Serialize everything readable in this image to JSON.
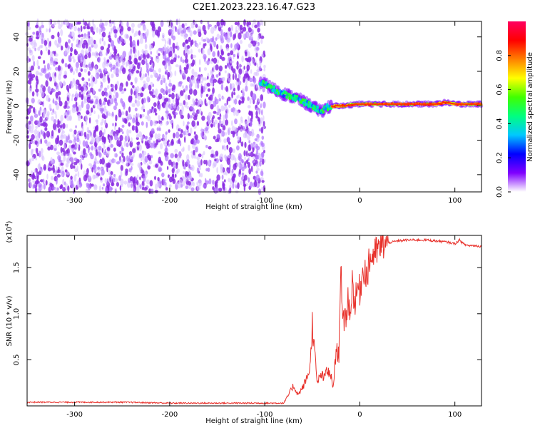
{
  "title": "C2E1.2023.223.16.47.G23",
  "colors": {
    "snr_line": "#e8302a",
    "frame": "#000000"
  },
  "chart_data": [
    {
      "type": "heatmap",
      "xlabel": "Height of straight line (km)",
      "ylabel": "Frequency (Hz)",
      "xlim": [
        -350,
        128
      ],
      "ylim": [
        -50,
        49
      ],
      "xticks": [
        -300,
        -200,
        -100,
        0,
        100
      ],
      "xtick_labels": [
        "-300",
        "-200",
        "-100",
        "0",
        "100"
      ],
      "yticks": [
        -40,
        -20,
        0,
        20,
        40
      ],
      "ytick_labels": [
        "-40",
        "-20",
        "0",
        "20",
        "40"
      ],
      "noise_region_x": [
        -350,
        -100
      ],
      "signal_track": {
        "x": [
          -105,
          -95,
          -85,
          -75,
          -65,
          -55,
          -45,
          -40,
          -35,
          -25,
          -15,
          -5,
          5,
          20,
          40,
          60,
          80,
          90,
          100,
          110,
          128
        ],
        "freq": [
          14,
          11,
          8,
          6,
          4,
          1,
          -2,
          -3,
          -1,
          0,
          0,
          1,
          1,
          1,
          1,
          1,
          1,
          2,
          1,
          1,
          1
        ]
      },
      "colorbar": {
        "label": "Normalized spectral amplitude",
        "ticks": [
          0.0,
          0.2,
          0.4,
          0.6,
          0.8
        ],
        "tick_labels": [
          "0.0",
          "0.2",
          "0.4",
          "0.6",
          "0.8"
        ],
        "range": [
          0,
          1
        ],
        "colormap": [
          "#ffffff",
          "#7f00ff",
          "#0000ff",
          "#00c8ff",
          "#00ff80",
          "#40ff00",
          "#ffff00",
          "#ff8000",
          "#ff0000",
          "#ff0060"
        ]
      }
    },
    {
      "type": "line",
      "xlabel": "Height of straight line (km)",
      "ylabel": "SNR (10 * v/v)",
      "y_multiplier": "(x10",
      "y_multiplier_exp": "4",
      "y_multiplier_close": ")",
      "xlim": [
        -350,
        128
      ],
      "ylim": [
        0,
        1.85
      ],
      "xticks": [
        -300,
        -200,
        -100,
        0,
        100
      ],
      "xtick_labels": [
        "-300",
        "-200",
        "-100",
        "0",
        "100"
      ],
      "yticks": [
        0.5,
        1.0,
        1.5
      ],
      "ytick_labels": [
        "0.5",
        "1.0",
        "1.5"
      ],
      "series": [
        {
          "x": [
            -350,
            -300,
            -250,
            -200,
            -150,
            -100,
            -80,
            -75,
            -70,
            -65,
            -60,
            -55,
            -52,
            -50,
            -45,
            -40,
            -38,
            -35,
            -30,
            -28,
            -25,
            -22,
            -20,
            -18,
            -15,
            -12,
            -10,
            -8,
            -5,
            -2,
            0,
            3,
            5,
            8,
            10,
            15,
            20,
            25,
            30,
            40,
            50,
            60,
            70,
            80,
            90,
            100,
            105,
            110,
            115,
            120,
            128
          ],
          "y": [
            0.04,
            0.04,
            0.04,
            0.03,
            0.03,
            0.03,
            0.03,
            0.12,
            0.22,
            0.12,
            0.2,
            0.32,
            0.45,
            0.9,
            0.25,
            0.35,
            0.28,
            0.4,
            0.3,
            0.2,
            0.6,
            0.55,
            1.65,
            0.85,
            0.95,
            1.2,
            0.95,
            1.35,
            1.1,
            1.3,
            1.25,
            1.45,
            1.5,
            1.4,
            1.58,
            1.65,
            1.7,
            1.75,
            1.77,
            1.79,
            1.8,
            1.8,
            1.8,
            1.79,
            1.78,
            1.76,
            1.8,
            1.75,
            1.74,
            1.74,
            1.73
          ]
        }
      ]
    }
  ]
}
